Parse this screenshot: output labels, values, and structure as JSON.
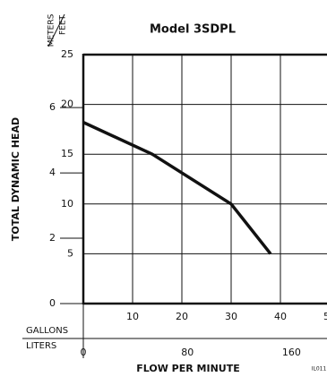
{
  "chart_data": {
    "type": "line",
    "title": "Model 3SDPL",
    "y_label": "TOTAL DYNAMIC HEAD",
    "x_label": "FLOW PER MINUTE",
    "y_unit": "FEET",
    "y2_unit": "METERS",
    "x_unit": "GALLONS",
    "x2_unit": "LITERS",
    "code": "IL011",
    "x": [
      0,
      14,
      30,
      38
    ],
    "series": [
      {
        "color": "#111111",
        "values": [
          18.2,
          15,
          10,
          5
        ]
      }
    ],
    "xlim": [
      0,
      50
    ],
    "xticks": [
      10,
      20,
      30,
      40,
      50
    ],
    "x2lim": [
      0,
      189.3
    ],
    "x2ticks": [
      0,
      80,
      160
    ],
    "ylim": [
      0,
      25
    ],
    "yticks": [
      5,
      10,
      15,
      20,
      25
    ],
    "y2lim": [
      0,
      7.62
    ],
    "y2ticks": [
      0,
      2,
      4,
      6
    ],
    "grid": true
  }
}
